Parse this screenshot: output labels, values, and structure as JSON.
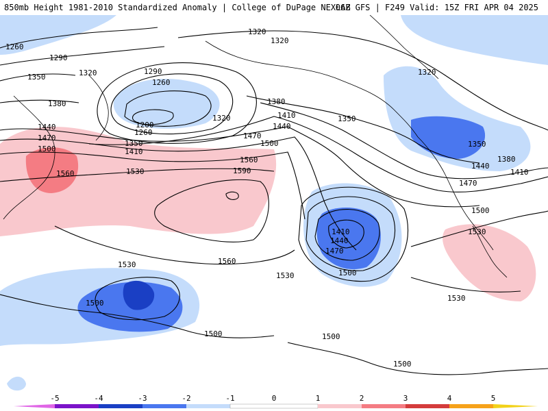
{
  "header": {
    "left": "850mb Height 1981-2010 Standardized Anomaly | College of DuPage NEXLAB",
    "right": "06Z GFS | F249 Valid: 15Z FRI APR 04 2025"
  },
  "colors": {
    "neg5": "#e066e6",
    "neg4": "#7b13c9",
    "neg3": "#1a3fc4",
    "neg2": "#4a77ef",
    "neg1": "#c4dcfb",
    "zero": "#ffffff",
    "pos1": "#f9c8cd",
    "pos2": "#f47c83",
    "pos3": "#d43c3c",
    "pos4": "#a50e0e",
    "pos5": "#f6a21a",
    "pos6": "#f2d21a"
  },
  "legend": {
    "ticks": [
      "-5",
      "-4",
      "-3",
      "-2",
      "-1",
      "0",
      "1",
      "2",
      "3",
      "4",
      "5"
    ]
  },
  "contour_labels": {
    "l1260a": "1260",
    "l1290a": "1290",
    "l1350a": "1350",
    "l1320a": "1320",
    "l1320b": "1320",
    "l1320c": "1320",
    "l1290b": "1290",
    "l1260b": "1260",
    "l1380a": "1380",
    "l1200": "1200",
    "l1260c": "1260",
    "l1320d": "1320",
    "l1440a": "1440",
    "l1470a": "1470",
    "l1500a": "1500",
    "l1350b": "1350",
    "l1410a": "1410",
    "l1380b": "1380",
    "l1410b": "1410",
    "l1440b": "1440",
    "l1470b": "1470",
    "l1500b": "1500",
    "l1560a": "1560",
    "l1530a": "1530",
    "l1560b": "1560",
    "l1590": "1590",
    "l1350c": "1350",
    "l1320e": "1320",
    "l1350d": "1350",
    "l1380c": "1380",
    "l1440c": "1440",
    "l1410c": "1410",
    "l1470c": "1470",
    "l1500c": "1500",
    "l1530b": "1530",
    "l1560c": "1560",
    "l1530c": "1530",
    "l1530d": "1530",
    "l1410d": "1410",
    "l1440d": "1440",
    "l1470d": "1470",
    "l1500d": "1500",
    "l1530e": "1530",
    "l1500e": "1500",
    "l1500f": "1500",
    "l1500g": "1500",
    "l1500h": "1500"
  }
}
